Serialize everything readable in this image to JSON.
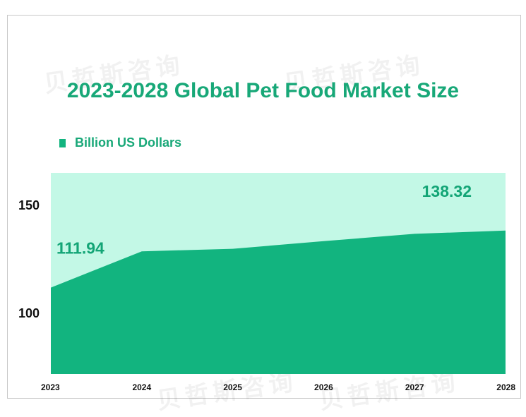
{
  "chart_data": {
    "type": "area",
    "title": "2023-2028 Global Pet Food Market Size",
    "legend": {
      "label": "Billion US Dollars",
      "placement": "top-left"
    },
    "x": [
      "2023",
      "2024",
      "2025",
      "2026",
      "2027",
      "2028"
    ],
    "series": [
      {
        "name": "Billion US Dollars",
        "values": [
          111.94,
          128.7,
          129.9,
          133.4,
          136.8,
          138.32
        ]
      }
    ],
    "data_labels": [
      {
        "index": 0,
        "text": "111.94"
      },
      {
        "index": 5,
        "text": "138.32"
      }
    ],
    "ylim": [
      72,
      165
    ],
    "yticks": [
      100,
      150
    ],
    "grid": false,
    "colors": {
      "area": "#12b47f",
      "background_band": "#c3f8e6",
      "title": "#18a878"
    }
  },
  "watermark": {
    "text": "贝哲斯咨询"
  }
}
